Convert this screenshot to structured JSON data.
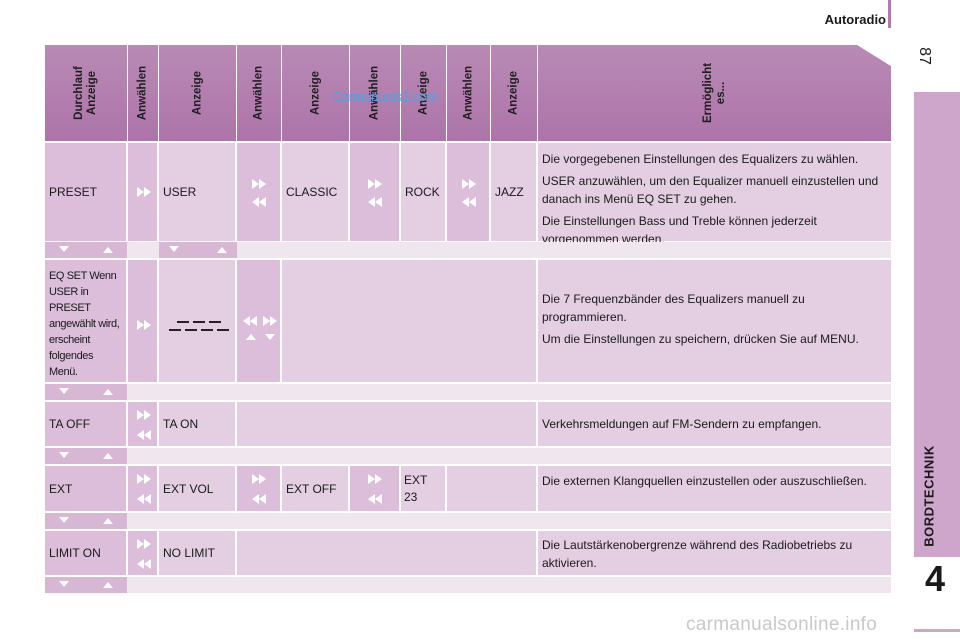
{
  "page": {
    "section_title": "Autoradio",
    "page_number": "87",
    "chapter_number": "4",
    "chapter_label": "BORDTECHNIK"
  },
  "watermark_top": "Carmanuals2.com",
  "watermark_bottom": "carmanualsonline.info",
  "headers": [
    "Durchlauf Anzeige",
    "Anwählen",
    "Anzeige",
    "Anwählen",
    "Anzeige",
    "Anwählen",
    "Anzeige",
    "Anwählen",
    "Anzeige",
    "Ermöglicht es..."
  ],
  "rows": [
    {
      "c0": "PRESET",
      "c2": "USER",
      "c4": "CLASSIC",
      "c6": "ROCK",
      "c8": "JAZZ",
      "desc": [
        "Die vorgegebenen Einstellungen des Equalizers zu wählen.",
        "USER anzuwählen, um den Equalizer manuell einzustellen und danach ins Menü EQ SET zu gehen.",
        "Die Einstellungen Bass und Treble können jederzeit vorgenommen werden."
      ]
    },
    {
      "c0": "EQ SET Wenn USER in PRESET angewählt wird, erscheint folgendes Menü.",
      "desc": [
        "Die 7 Frequenzbänder des Equalizers manuell zu programmieren.",
        "Um die Einstellungen zu speichern, drücken Sie auf MENU."
      ]
    },
    {
      "c0": "TA OFF",
      "c2": "TA ON",
      "desc": [
        "Verkehrsmeldungen auf FM-Sendern zu empfangen."
      ]
    },
    {
      "c0": "EXT",
      "c2": "EXT VOL",
      "c4": "EXT OFF",
      "c6": "EXT 23",
      "desc": [
        "Die externen Klangquellen einzustellen oder auszuschließen."
      ]
    },
    {
      "c0": "LIMIT ON",
      "c2": "NO LIMIT",
      "desc": [
        "Die Lautstärkenobergrenze während des Radiobetriebs zu aktivieren."
      ]
    }
  ],
  "icons": {
    "next": "fast-forward-icon",
    "prev": "rewind-icon",
    "down": "triangle-down-icon",
    "up": "triangle-up-icon",
    "eq": "equalizer-bars-icon"
  },
  "colors": {
    "header": "#ad74a9",
    "side_tab": "#cfa6cb",
    "cell_dark": "#dcbedb",
    "cell_light": "#e9dbe8"
  }
}
